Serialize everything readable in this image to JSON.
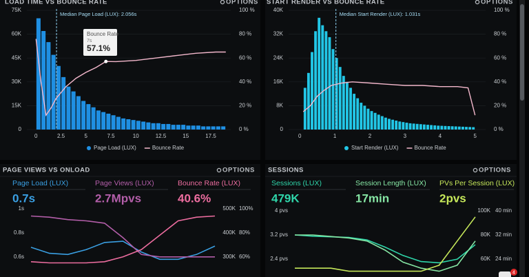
{
  "chart_data": [
    {
      "type": "histogram",
      "title": "LOAD TIME VS BOUNCE RATE",
      "options": "OPTIONS",
      "name": "Page Load (LUX)",
      "color": "#1f8fe2",
      "bins": [
        0,
        0.5,
        1,
        1.5,
        2,
        2.5,
        3,
        3.5,
        4,
        4.5,
        5,
        5.5,
        6,
        6.5,
        7,
        7.5,
        8,
        8.5,
        9,
        9.5,
        10,
        10.5,
        11,
        11.5,
        12,
        12.5,
        13,
        13.5,
        14,
        14.5,
        15,
        15.5,
        16,
        16.5,
        17,
        17.5,
        18,
        18.5,
        19
      ],
      "counts": [
        70000,
        62000,
        55000,
        47000,
        40000,
        33000,
        27000,
        24000,
        21000,
        18000,
        16000,
        14000,
        12000,
        11000,
        10000,
        9000,
        8000,
        7000,
        6500,
        6000,
        5500,
        5000,
        4500,
        4000,
        4000,
        3500,
        3500,
        3000,
        3000,
        3000,
        2500,
        2500,
        2500,
        2000,
        2000,
        2000,
        2000,
        2000
      ],
      "line": {
        "name": "Bounce Rate",
        "color": "#f4b8cc",
        "axis": "y2",
        "x": [
          0,
          0.5,
          1,
          1.5,
          2,
          3,
          4,
          5,
          6,
          7,
          8,
          10,
          12,
          14,
          16,
          18,
          19
        ],
        "values": [
          76,
          40,
          12,
          18,
          26,
          36,
          43,
          48,
          52,
          57.1,
          57,
          58,
          60,
          62,
          64,
          65,
          65
        ]
      },
      "xlim": [
        -0.5,
        19.5
      ],
      "xticks": [
        0,
        2.5,
        5,
        7.5,
        10,
        12.5,
        15,
        17.5
      ],
      "ylim": [
        0,
        75000
      ],
      "yticks": [
        0,
        {
          "value": 15000,
          "label": "15K"
        },
        {
          "value": 30000,
          "label": "30K"
        },
        {
          "value": 45000,
          "label": "45K"
        },
        {
          "value": 60000,
          "label": "60K"
        },
        {
          "value": 75000,
          "label": "75K"
        }
      ],
      "y2lim": [
        0,
        100
      ],
      "y2ticks": [
        {
          "value": 0,
          "label": "0 %"
        },
        {
          "value": 20,
          "label": "20 %"
        },
        {
          "value": 40,
          "label": "40 %"
        },
        {
          "value": 60,
          "label": "60 %"
        },
        {
          "value": 80,
          "label": "80 %"
        },
        {
          "value": 100,
          "label": "100 %"
        }
      ],
      "grid": true,
      "median": {
        "value": 2.056,
        "label": "Median Page Load (LUX): 2.056s"
      },
      "tooltip": {
        "title": "Bounce Rate",
        "subtitle": "7s",
        "value": "57.1%"
      }
    },
    {
      "type": "histogram",
      "title": "START RENDER VS BOUNCE RATE",
      "options": "OPTIONS",
      "name": "Start Render (LUX)",
      "color": "#22c6e6",
      "bins": [
        0.1,
        0.2,
        0.3,
        0.4,
        0.5,
        0.6,
        0.7,
        0.8,
        0.9,
        1,
        1.1,
        1.2,
        1.3,
        1.4,
        1.5,
        1.6,
        1.7,
        1.8,
        1.9,
        2,
        2.1,
        2.2,
        2.3,
        2.4,
        2.5,
        2.6,
        2.7,
        2.8,
        2.9,
        3,
        3.1,
        3.2,
        3.3,
        3.4,
        3.5,
        3.6,
        3.7,
        3.8,
        3.9,
        4,
        4.1,
        4.2,
        4.3,
        4.4,
        4.5,
        4.6,
        4.7,
        4.8,
        4.9,
        5
      ],
      "counts": [
        14000,
        19000,
        26000,
        33000,
        37500,
        35000,
        33000,
        31000,
        27000,
        24000,
        21000,
        18000,
        16000,
        14000,
        12000,
        10500,
        9000,
        8000,
        7000,
        6200,
        5600,
        5000,
        4500,
        4000,
        3600,
        3300,
        3000,
        2700,
        2500,
        2300,
        2100,
        2000,
        1900,
        1800,
        1700,
        1600,
        1500,
        1400,
        1300,
        1250,
        1200,
        1150,
        1100,
        1050,
        1000,
        950,
        900,
        850,
        800
      ],
      "line": {
        "name": "Bounce Rate",
        "color": "#f4b8cc",
        "axis": "y2",
        "x": [
          0.1,
          0.3,
          0.5,
          0.7,
          0.9,
          1.2,
          1.5,
          2,
          2.5,
          3,
          3.5,
          4,
          4.5,
          4.8,
          5
        ],
        "values": [
          15,
          20,
          28,
          33,
          37,
          39,
          40,
          39,
          38,
          37,
          37,
          36,
          36,
          35,
          12
        ]
      },
      "xlim": [
        -0.2,
        5.3
      ],
      "xticks": [
        0,
        1,
        2,
        3,
        4,
        5
      ],
      "ylim": [
        0,
        40000
      ],
      "yticks": [
        0,
        {
          "value": 8000,
          "label": "8K"
        },
        {
          "value": 16000,
          "label": "16K"
        },
        {
          "value": 24000,
          "label": "24K"
        },
        {
          "value": 32000,
          "label": "32K"
        },
        {
          "value": 40000,
          "label": "40K"
        }
      ],
      "y2lim": [
        0,
        100
      ],
      "y2ticks": [
        {
          "value": 0,
          "label": "0 %"
        },
        {
          "value": 20,
          "label": "20 %"
        },
        {
          "value": 40,
          "label": "40 %"
        },
        {
          "value": 60,
          "label": "60 %"
        },
        {
          "value": 80,
          "label": "80 %"
        },
        {
          "value": 100,
          "label": "100 %"
        }
      ],
      "grid": true,
      "median": {
        "value": 1.031,
        "label": "Median Start Render (LUX): 1.031s"
      }
    },
    {
      "type": "line",
      "title": "PAGE VIEWS VS ONLOAD",
      "options": "OPTIONS",
      "x": [
        0,
        1,
        2,
        3,
        4,
        5,
        6,
        7,
        8,
        9,
        10
      ],
      "xlim": [
        0,
        10
      ],
      "series": [
        {
          "name": "Page Load (LUX)",
          "metric": "0.7s",
          "color": "#3a9fe2",
          "axis": "y",
          "values": [
            0.68,
            0.63,
            0.62,
            0.66,
            0.72,
            0.73,
            0.64,
            0.58,
            0.58,
            0.62,
            0.69
          ]
        },
        {
          "name": "Page Views (LUX)",
          "metric": "2.7Mpvs",
          "color": "#b35ea9",
          "axis": "y2",
          "values": [
            470000,
            465000,
            455000,
            450000,
            440000,
            380000,
            310000,
            300000,
            300000,
            300000,
            300000
          ]
        },
        {
          "name": "Bounce Rate (LUX)",
          "metric": "40.6%",
          "color": "#ec6d9f",
          "axis": "y3",
          "values": [
            56,
            55,
            55,
            55,
            56,
            60,
            66,
            78,
            90,
            93,
            94
          ]
        }
      ],
      "ylim": [
        0.45,
        1.0
      ],
      "yticks": [
        {
          "value": 0.6,
          "label": "0.6s"
        },
        {
          "value": 0.8,
          "label": "0.8s"
        },
        {
          "value": 1,
          "label": "1s"
        }
      ],
      "y2lim": [
        225000,
        500000
      ],
      "y2ticks": [
        {
          "value": 300000,
          "label": "300K"
        },
        {
          "value": 400000,
          "label": "400K"
        },
        {
          "value": 500000,
          "label": "500K"
        }
      ],
      "y3lim": [
        45,
        100
      ],
      "y3ticks": [
        {
          "value": 60,
          "label": "60%"
        },
        {
          "value": 80,
          "label": "80%"
        },
        {
          "value": 100,
          "label": "100%"
        }
      ]
    },
    {
      "type": "line",
      "title": "SESSIONS",
      "options": "OPTIONS",
      "x": [
        0,
        1,
        2,
        3,
        4,
        5,
        6,
        7,
        8,
        9,
        10
      ],
      "xlim": [
        0,
        10
      ],
      "series": [
        {
          "name": "Sessions (LUX)",
          "metric": "479K",
          "color": "#2fd6aa",
          "axis": "y2",
          "values": [
            80000,
            79000,
            78500,
            78000,
            76000,
            70000,
            63000,
            58000,
            57000,
            60000,
            72000
          ]
        },
        {
          "name": "Session Length (LUX)",
          "metric": "17min",
          "color": "#86e6a4",
          "axis": "y3",
          "values": [
            32,
            32,
            31.5,
            31,
            30,
            27,
            23,
            21,
            20,
            22,
            30
          ]
        },
        {
          "name": "PVs Per Session (LUX)",
          "metric": "2pvs",
          "color": "#c6e85a",
          "axis": "y",
          "values": [
            2.1,
            2.1,
            2.1,
            2,
            2,
            2,
            2,
            2,
            2.2,
            3,
            3.8
          ]
        }
      ],
      "ylim": [
        1.9,
        4
      ],
      "yticks": [
        {
          "value": 2.4,
          "label": "2.4 pvs"
        },
        {
          "value": 3.2,
          "label": "3.2 pvs"
        },
        {
          "value": 4,
          "label": "4 pvs"
        }
      ],
      "y2lim": [
        47500,
        100000
      ],
      "y2ticks": [
        {
          "value": 60000,
          "label": "60K"
        },
        {
          "value": 80000,
          "label": "80K"
        },
        {
          "value": 100000,
          "label": "100K"
        }
      ],
      "y3lim": [
        19,
        40
      ],
      "y3ticks": [
        {
          "value": 24,
          "label": "24 min"
        },
        {
          "value": 32,
          "label": "32 min"
        },
        {
          "value": 40,
          "label": "40 min"
        }
      ]
    }
  ],
  "badge": "4"
}
